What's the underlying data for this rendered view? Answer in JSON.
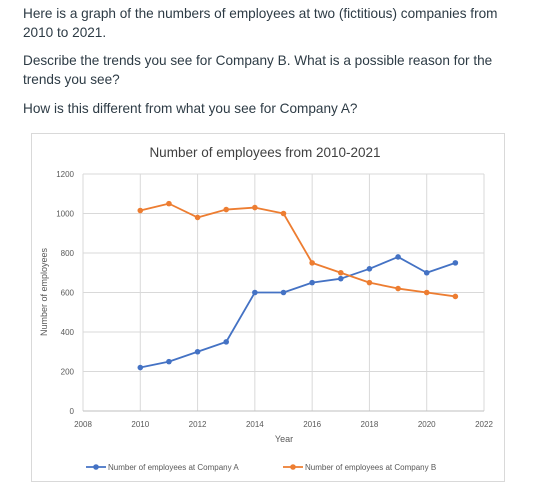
{
  "question": {
    "p1": "Here is a graph of the numbers of employees at two (fictitious) companies from 2010 to 2021.",
    "p2": "Describe the trends you see for Company B. What is a possible reason for the trends you see?",
    "p3": "How is this different from what you see for Company A?"
  },
  "chart_data": {
    "type": "line",
    "title": "Number of employees from 2010-2021",
    "xlabel": "Year",
    "ylabel": "Number of employees",
    "xlim": [
      2008,
      2022
    ],
    "ylim": [
      0,
      1200
    ],
    "x_ticks": [
      2008,
      2010,
      2012,
      2014,
      2016,
      2018,
      2020,
      2022
    ],
    "y_ticks": [
      0,
      200,
      400,
      600,
      800,
      1000,
      1200
    ],
    "grid": true,
    "legend_position": "bottom",
    "x": [
      2010,
      2011,
      2012,
      2013,
      2014,
      2015,
      2016,
      2017,
      2018,
      2019,
      2020,
      2021
    ],
    "series": [
      {
        "name": "Number of employees at Company A",
        "color": "#4472c4",
        "values": [
          220,
          250,
          300,
          350,
          600,
          600,
          650,
          670,
          720,
          780,
          700,
          750
        ]
      },
      {
        "name": "Number of employees at Company B",
        "color": "#ed7d31",
        "values": [
          1015,
          1050,
          980,
          1020,
          1030,
          1000,
          750,
          700,
          650,
          620,
          600,
          580
        ]
      }
    ]
  }
}
